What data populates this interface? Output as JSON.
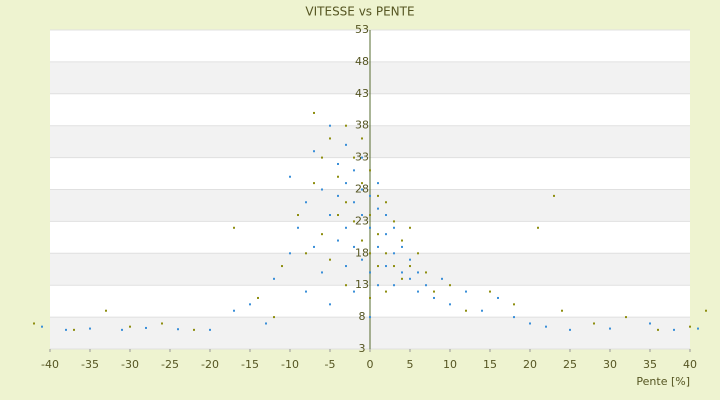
{
  "chart_data": {
    "type": "scatter",
    "title": "VITESSE vs PENTE",
    "xlabel": "Pente [%]",
    "xlim": [
      -40,
      40
    ],
    "ylim": [
      3,
      53
    ],
    "xticks": [
      -40,
      -35,
      -30,
      -25,
      -20,
      -15,
      -10,
      -5,
      0,
      5,
      10,
      15,
      20,
      25,
      30,
      35,
      40
    ],
    "yticks": [
      3,
      8,
      13,
      18,
      23,
      28,
      33,
      38,
      43,
      48,
      53
    ],
    "grid": true,
    "series": [
      {
        "color": "#8e8e10",
        "x": [
          -42,
          -37,
          -33,
          -30,
          -26,
          -22,
          -17,
          -14,
          -12,
          -11,
          -9,
          -8,
          -7,
          -7,
          -6,
          -6,
          -5,
          -5,
          -4,
          -4,
          -3,
          -3,
          -3,
          -2,
          -2,
          -1,
          -1,
          -1,
          0,
          0,
          0,
          0,
          1,
          1,
          1,
          2,
          2,
          2,
          3,
          3,
          4,
          4,
          5,
          5,
          6,
          7,
          8,
          10,
          12,
          15,
          18,
          21,
          23,
          24,
          28,
          32,
          36,
          40,
          42
        ],
        "values": [
          7,
          6,
          9,
          6.5,
          7,
          6,
          22,
          11,
          8,
          16,
          24,
          18,
          40,
          29,
          33,
          21,
          36,
          17,
          30,
          24,
          38,
          26,
          13,
          33,
          23,
          36,
          20,
          29,
          31,
          18,
          24,
          11,
          27,
          21,
          16,
          26,
          18,
          12,
          23,
          16,
          20,
          14,
          22,
          16,
          18,
          15,
          12,
          13,
          9,
          12,
          10,
          22,
          27,
          9,
          7,
          8,
          6,
          6.5,
          9
        ]
      },
      {
        "color": "#3a8fd8",
        "x": [
          -41,
          -38,
          -35,
          -31,
          -28,
          -24,
          -20,
          -17,
          -15,
          -13,
          -12,
          -10,
          -10,
          -9,
          -8,
          -8,
          -7,
          -7,
          -6,
          -6,
          -5,
          -5,
          -5,
          -4,
          -4,
          -4,
          -3,
          -3,
          -3,
          -3,
          -2,
          -2,
          -2,
          -2,
          -1,
          -1,
          -1,
          -1,
          0,
          0,
          0,
          0,
          1,
          1,
          1,
          1,
          2,
          2,
          2,
          3,
          3,
          3,
          4,
          4,
          5,
          5,
          6,
          6,
          7,
          8,
          9,
          10,
          12,
          14,
          16,
          18,
          20,
          22,
          25,
          30,
          35,
          38,
          41
        ],
        "values": [
          6.5,
          6,
          6.2,
          6,
          6.3,
          6.1,
          6,
          9,
          10,
          7,
          14,
          18,
          30,
          22,
          12,
          26,
          34,
          19,
          28,
          15,
          38,
          24,
          10,
          32,
          20,
          27,
          35,
          22,
          16,
          29,
          26,
          31,
          19,
          12,
          24,
          28,
          17,
          33,
          22,
          27,
          15,
          8,
          25,
          19,
          13,
          29,
          21,
          16,
          24,
          18,
          13,
          22,
          15,
          19,
          14,
          17,
          12,
          15,
          13,
          11,
          14,
          10,
          12,
          9,
          11,
          8,
          7,
          6.5,
          6,
          6.2,
          7,
          6,
          6.2
        ]
      }
    ]
  }
}
